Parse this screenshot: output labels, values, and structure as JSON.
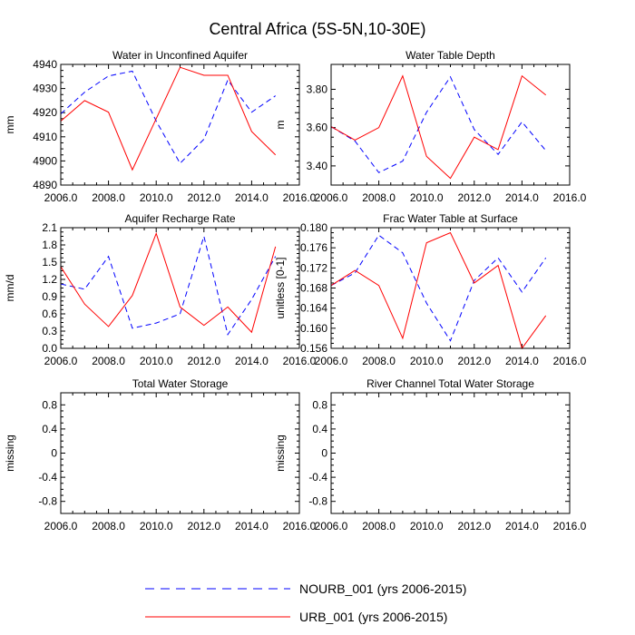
{
  "figure": {
    "title": "Central Africa (5S-5N,10-30E)"
  },
  "legend": {
    "entries": [
      {
        "label": "NOURB_001 (yrs 2006-2015)",
        "color": "#0000ff",
        "dash": "dashed"
      },
      {
        "label": "URB_001 (yrs 2006-2015)",
        "color": "#ff0000",
        "dash": "solid"
      }
    ]
  },
  "chart_data": [
    {
      "type": "line",
      "title": "Water in Unconfined Aquifer",
      "xlabel": "",
      "ylabel": "mm",
      "xlim": [
        2006,
        2016
      ],
      "ylim": [
        4890,
        4940
      ],
      "xticks": [
        2006,
        2008,
        2010,
        2012,
        2014,
        2016
      ],
      "xtick_labels": [
        "2006.0",
        "2008.0",
        "2010.0",
        "2012.0",
        "2014.0",
        "2016.0"
      ],
      "yticks": [
        4890,
        4900,
        4910,
        4920,
        4930,
        4940
      ],
      "ytick_labels": [
        "4890",
        "4900",
        "4910",
        "4920",
        "4930",
        "4940"
      ],
      "x": [
        2006,
        2007,
        2008,
        2009,
        2010,
        2011,
        2012,
        2013,
        2014,
        2015
      ],
      "series": [
        {
          "name": "NOURB_001 (yrs 2006-2015)",
          "color": "#0000ff",
          "dash": "dashed",
          "values": [
            4919.5,
            4928.5,
            4935.2,
            4937.2,
            4916.5,
            4899.0,
            4909.0,
            4933.5,
            4920.2,
            4927.0
          ]
        },
        {
          "name": "URB_001 (yrs 2006-2015)",
          "color": "#ff0000",
          "dash": "solid",
          "values": [
            4916.5,
            4925.0,
            4920.2,
            4896.3,
            4917.5,
            4938.8,
            4935.5,
            4935.5,
            4912.2,
            4902.5
          ]
        }
      ]
    },
    {
      "type": "line",
      "title": "Water Table Depth",
      "xlabel": "",
      "ylabel": "m",
      "xlim": [
        2006,
        2016
      ],
      "ylim": [
        3.3,
        3.93
      ],
      "xticks": [
        2006,
        2008,
        2010,
        2012,
        2014,
        2016
      ],
      "xtick_labels": [
        "2006.0",
        "2008.0",
        "2010.0",
        "2012.0",
        "2014.0",
        "2016.0"
      ],
      "yticks": [
        3.4,
        3.6,
        3.8
      ],
      "ytick_labels": [
        "3.40",
        "3.60",
        "3.80"
      ],
      "x": [
        2006,
        2007,
        2008,
        2009,
        2010,
        2011,
        2012,
        2013,
        2014,
        2015
      ],
      "series": [
        {
          "name": "NOURB_001 (yrs 2006-2015)",
          "color": "#0000ff",
          "dash": "dashed",
          "values": [
            3.605,
            3.53,
            3.365,
            3.425,
            3.68,
            3.865,
            3.59,
            3.46,
            3.63,
            3.48
          ]
        },
        {
          "name": "URB_001 (yrs 2006-2015)",
          "color": "#ff0000",
          "dash": "solid",
          "values": [
            3.605,
            3.535,
            3.6,
            3.87,
            3.45,
            3.335,
            3.55,
            3.485,
            3.87,
            3.77
          ]
        }
      ]
    },
    {
      "type": "line",
      "title": "Aquifer Recharge Rate",
      "xlabel": "",
      "ylabel": "mm/d",
      "xlim": [
        2006,
        2016
      ],
      "ylim": [
        0.0,
        2.1
      ],
      "xticks": [
        2006,
        2008,
        2010,
        2012,
        2014,
        2016
      ],
      "xtick_labels": [
        "2006.0",
        "2008.0",
        "2010.0",
        "2012.0",
        "2014.0",
        "2016.0"
      ],
      "yticks": [
        0.0,
        0.3,
        0.6,
        0.9,
        1.2,
        1.5,
        1.8,
        2.1
      ],
      "ytick_labels": [
        "0.0",
        "0.3",
        "0.6",
        "0.9",
        "1.2",
        "1.5",
        "1.8",
        "2.1"
      ],
      "x": [
        2006,
        2007,
        2008,
        2009,
        2010,
        2011,
        2012,
        2013,
        2014,
        2015
      ],
      "series": [
        {
          "name": "NOURB_001 (yrs 2006-2015)",
          "color": "#0000ff",
          "dash": "dashed",
          "values": [
            1.12,
            1.03,
            1.6,
            0.35,
            0.44,
            0.6,
            1.95,
            0.24,
            0.85,
            1.6
          ]
        },
        {
          "name": "URB_001 (yrs 2006-2015)",
          "color": "#ff0000",
          "dash": "solid",
          "values": [
            1.42,
            0.77,
            0.38,
            0.92,
            2.0,
            0.72,
            0.4,
            0.72,
            0.28,
            1.77
          ]
        }
      ]
    },
    {
      "type": "line",
      "title": "Frac Water Table at Surface",
      "xlabel": "",
      "ylabel": "unitless [0-1]",
      "xlim": [
        2006,
        2016
      ],
      "ylim": [
        0.156,
        0.18
      ],
      "xticks": [
        2006,
        2008,
        2010,
        2012,
        2014,
        2016
      ],
      "xtick_labels": [
        "2006.0",
        "2008.0",
        "2010.0",
        "2012.0",
        "2014.0",
        "2016.0"
      ],
      "yticks": [
        0.156,
        0.16,
        0.164,
        0.168,
        0.172,
        0.176,
        0.18
      ],
      "ytick_labels": [
        "0.156",
        "0.160",
        "0.164",
        "0.168",
        "0.172",
        "0.176",
        "0.180"
      ],
      "x": [
        2006,
        2007,
        2008,
        2009,
        2010,
        2011,
        2012,
        2013,
        2014,
        2015
      ],
      "series": [
        {
          "name": "NOURB_001 (yrs 2006-2015)",
          "color": "#0000ff",
          "dash": "dashed",
          "values": [
            0.1685,
            0.171,
            0.1785,
            0.175,
            0.165,
            0.1575,
            0.1695,
            0.174,
            0.1672,
            0.174
          ]
        },
        {
          "name": "URB_001 (yrs 2006-2015)",
          "color": "#ff0000",
          "dash": "solid",
          "values": [
            0.1685,
            0.1715,
            0.1685,
            0.158,
            0.177,
            0.179,
            0.169,
            0.1725,
            0.156,
            0.1625
          ]
        }
      ]
    },
    {
      "type": "line",
      "title": "Total Water Storage",
      "xlabel": "",
      "ylabel": "missing",
      "xlim": [
        2006,
        2016
      ],
      "ylim": [
        -1.0,
        1.0
      ],
      "xticks": [
        2006,
        2008,
        2010,
        2012,
        2014,
        2016
      ],
      "xtick_labels": [
        "2006.0",
        "2008.0",
        "2010.0",
        "2012.0",
        "2014.0",
        "2016.0"
      ],
      "yticks": [
        -0.8,
        -0.4,
        0.0,
        0.4,
        0.8
      ],
      "ytick_labels": [
        "-0.8",
        "-0.4",
        "0",
        "0.4",
        "0.8"
      ],
      "x": [],
      "series": []
    },
    {
      "type": "line",
      "title": "River Channel Total Water Storage",
      "xlabel": "",
      "ylabel": "missing",
      "xlim": [
        2006,
        2016
      ],
      "ylim": [
        -1.0,
        1.0
      ],
      "xticks": [
        2006,
        2008,
        2010,
        2012,
        2014,
        2016
      ],
      "xtick_labels": [
        "2006.0",
        "2008.0",
        "2010.0",
        "2012.0",
        "2014.0",
        "2016.0"
      ],
      "yticks": [
        -0.8,
        -0.4,
        0.0,
        0.4,
        0.8
      ],
      "ytick_labels": [
        "-0.8",
        "-0.4",
        "0",
        "0.4",
        "0.8"
      ],
      "x": [],
      "series": []
    }
  ]
}
